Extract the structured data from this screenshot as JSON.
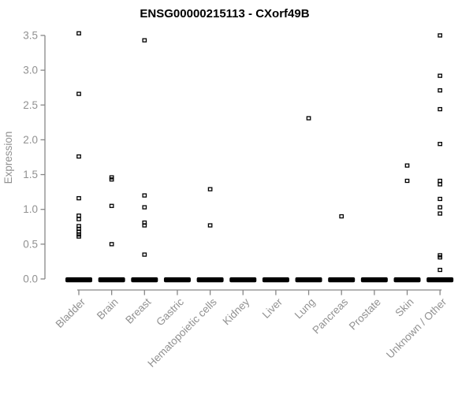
{
  "title": "ENSG00000215113 - CXorf49B",
  "colors": {
    "title": "#000000",
    "axis_line": "#878787",
    "tick_label": "#919191",
    "axis_title": "#919191",
    "point": "#000000",
    "zero_bar": "#000000",
    "background": "#ffffff"
  },
  "chart_data": {
    "type": "scatter",
    "title": "ENSG00000215113 - CXorf49B",
    "xlabel": "",
    "ylabel": "Expression",
    "ylim": [
      0.0,
      3.5
    ],
    "yticks": [
      0.0,
      0.5,
      1.0,
      1.5,
      2.0,
      2.5,
      3.0,
      3.5
    ],
    "grid": false,
    "legend": null,
    "marker": "open-square",
    "zero_cluster_note": "dense overlapping points at expression 0 drawn as a solid black bar per category",
    "categories": [
      "Bladder",
      "Brain",
      "Breast",
      "Gastric",
      "Hematopoietic cells",
      "Kidney",
      "Liver",
      "Lung",
      "Pancreas",
      "Prostate",
      "Skin",
      "Unknown / Other"
    ],
    "series": [
      {
        "name": "Bladder",
        "zero_cluster": true,
        "values": [
          3.53,
          2.66,
          1.76,
          1.16,
          0.91,
          0.86,
          0.76,
          0.72,
          0.68,
          0.64,
          0.61
        ]
      },
      {
        "name": "Brain",
        "zero_cluster": true,
        "values": [
          1.46,
          1.43,
          1.05,
          0.5
        ]
      },
      {
        "name": "Breast",
        "zero_cluster": true,
        "values": [
          3.43,
          1.2,
          1.03,
          0.81,
          0.77,
          0.35
        ]
      },
      {
        "name": "Gastric",
        "zero_cluster": true,
        "values": []
      },
      {
        "name": "Hematopoietic cells",
        "zero_cluster": true,
        "values": [
          1.29,
          0.77
        ]
      },
      {
        "name": "Kidney",
        "zero_cluster": true,
        "values": []
      },
      {
        "name": "Liver",
        "zero_cluster": true,
        "values": []
      },
      {
        "name": "Lung",
        "zero_cluster": true,
        "values": [
          2.31
        ]
      },
      {
        "name": "Pancreas",
        "zero_cluster": true,
        "values": [
          0.9
        ]
      },
      {
        "name": "Prostate",
        "zero_cluster": true,
        "values": []
      },
      {
        "name": "Skin",
        "zero_cluster": true,
        "values": [
          1.63,
          1.41
        ]
      },
      {
        "name": "Unknown / Other",
        "zero_cluster": true,
        "values": [
          3.5,
          2.92,
          2.71,
          2.44,
          1.94,
          1.41,
          1.36,
          1.15,
          1.03,
          0.94,
          0.34,
          0.31,
          0.13
        ]
      }
    ]
  }
}
